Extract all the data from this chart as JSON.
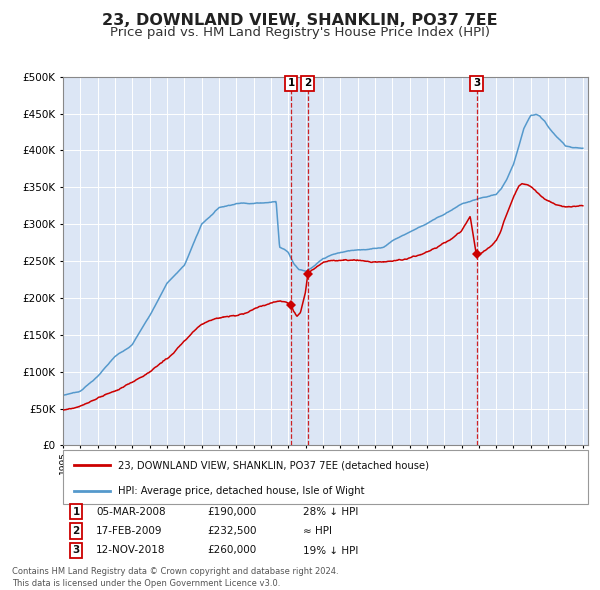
{
  "title": "23, DOWNLAND VIEW, SHANKLIN, PO37 7EE",
  "subtitle": "Price paid vs. HM Land Registry's House Price Index (HPI)",
  "title_fontsize": 11.5,
  "subtitle_fontsize": 9.5,
  "ylabel_ticks": [
    "£0",
    "£50K",
    "£100K",
    "£150K",
    "£200K",
    "£250K",
    "£300K",
    "£350K",
    "£400K",
    "£450K",
    "£500K"
  ],
  "ytick_vals": [
    0,
    50000,
    100000,
    150000,
    200000,
    250000,
    300000,
    350000,
    400000,
    450000,
    500000
  ],
  "ylim": [
    0,
    500000
  ],
  "xlim_start": 1995.0,
  "xlim_end": 2025.3,
  "plot_bg_color": "#dce6f5",
  "grid_color": "#ffffff",
  "red_line_color": "#cc0000",
  "blue_line_color": "#5599cc",
  "marker_color": "#cc0000",
  "dashed_color": "#cc0000",
  "sale_dates": [
    2008.17,
    2009.12,
    2018.87
  ],
  "sale_prices": [
    190000,
    232500,
    260000
  ],
  "sale_labels": [
    "1",
    "2",
    "3"
  ],
  "legend_label_red": "23, DOWNLAND VIEW, SHANKLIN, PO37 7EE (detached house)",
  "legend_label_blue": "HPI: Average price, detached house, Isle of Wight",
  "table_rows": [
    {
      "num": "1",
      "date": "05-MAR-2008",
      "price": "£190,000",
      "note": "28% ↓ HPI"
    },
    {
      "num": "2",
      "date": "17-FEB-2009",
      "price": "£232,500",
      "note": "≈ HPI"
    },
    {
      "num": "3",
      "date": "12-NOV-2018",
      "price": "£260,000",
      "note": "19% ↓ HPI"
    }
  ],
  "footer": "Contains HM Land Registry data © Crown copyright and database right 2024.\nThis data is licensed under the Open Government Licence v3.0.",
  "hpi_key_x": [
    1995.0,
    1995.5,
    1996.0,
    1996.5,
    1997.0,
    1997.5,
    1998.0,
    1998.5,
    1999.0,
    1999.5,
    2000.0,
    2000.5,
    2001.0,
    2001.5,
    2002.0,
    2002.5,
    2003.0,
    2003.5,
    2004.0,
    2004.5,
    2005.0,
    2005.5,
    2006.0,
    2006.5,
    2007.0,
    2007.3,
    2007.5,
    2007.8,
    2008.0,
    2008.3,
    2008.6,
    2009.0,
    2009.3,
    2009.6,
    2010.0,
    2010.5,
    2011.0,
    2011.5,
    2012.0,
    2012.5,
    2013.0,
    2013.5,
    2014.0,
    2014.5,
    2015.0,
    2015.5,
    2016.0,
    2016.5,
    2017.0,
    2017.5,
    2018.0,
    2018.5,
    2019.0,
    2019.5,
    2020.0,
    2020.3,
    2020.6,
    2021.0,
    2021.3,
    2021.6,
    2022.0,
    2022.3,
    2022.5,
    2022.8,
    2023.0,
    2023.5,
    2024.0,
    2024.5,
    2025.0
  ],
  "hpi_key_y": [
    68000,
    71000,
    74000,
    84000,
    94000,
    107000,
    120000,
    128000,
    137000,
    157000,
    176000,
    198000,
    220000,
    232000,
    244000,
    272000,
    300000,
    311000,
    323000,
    326000,
    329000,
    330000,
    330000,
    331000,
    332000,
    333000,
    271000,
    268000,
    265000,
    250000,
    242000,
    240000,
    243000,
    248000,
    255000,
    260000,
    263000,
    265000,
    267000,
    268000,
    269000,
    271000,
    280000,
    286000,
    292000,
    298000,
    304000,
    310000,
    316000,
    323000,
    330000,
    333000,
    336000,
    338000,
    340000,
    348000,
    360000,
    380000,
    405000,
    430000,
    448000,
    450000,
    447000,
    440000,
    432000,
    418000,
    406000,
    404000,
    403000
  ],
  "red_key_x": [
    1995.0,
    1995.5,
    1996.0,
    1996.5,
    1997.0,
    1997.5,
    1998.0,
    1998.5,
    1999.0,
    1999.5,
    2000.0,
    2000.5,
    2001.0,
    2001.5,
    2002.0,
    2002.5,
    2003.0,
    2003.5,
    2004.0,
    2004.5,
    2005.0,
    2005.5,
    2006.0,
    2006.5,
    2007.0,
    2007.3,
    2007.6,
    2007.9,
    2008.0,
    2008.17,
    2008.3,
    2008.5,
    2008.7,
    2009.0,
    2009.12,
    2009.3,
    2009.6,
    2009.9,
    2010.0,
    2010.5,
    2011.0,
    2011.5,
    2012.0,
    2012.5,
    2013.0,
    2013.5,
    2014.0,
    2014.5,
    2015.0,
    2015.5,
    2016.0,
    2016.5,
    2017.0,
    2017.5,
    2018.0,
    2018.5,
    2018.87,
    2019.0,
    2019.3,
    2019.6,
    2020.0,
    2020.3,
    2020.6,
    2021.0,
    2021.3,
    2021.5,
    2021.8,
    2022.0,
    2022.3,
    2022.6,
    2023.0,
    2023.5,
    2024.0,
    2024.5,
    2025.0
  ],
  "red_key_y": [
    48000,
    50000,
    52000,
    56000,
    62000,
    68000,
    72000,
    78000,
    84000,
    92000,
    100000,
    108000,
    116000,
    126000,
    138000,
    150000,
    162000,
    168000,
    172000,
    173000,
    174000,
    176000,
    182000,
    188000,
    192000,
    193000,
    193500,
    193000,
    192000,
    190000,
    182000,
    175000,
    180000,
    210000,
    232500,
    238000,
    243000,
    248000,
    250000,
    253000,
    254000,
    254000,
    253000,
    252000,
    252000,
    253000,
    254000,
    255000,
    258000,
    262000,
    268000,
    274000,
    280000,
    287000,
    295000,
    315000,
    260000,
    262000,
    267000,
    272000,
    282000,
    298000,
    318000,
    340000,
    354000,
    357000,
    357000,
    354000,
    348000,
    340000,
    334000,
    328000,
    325000,
    325000,
    325000
  ]
}
